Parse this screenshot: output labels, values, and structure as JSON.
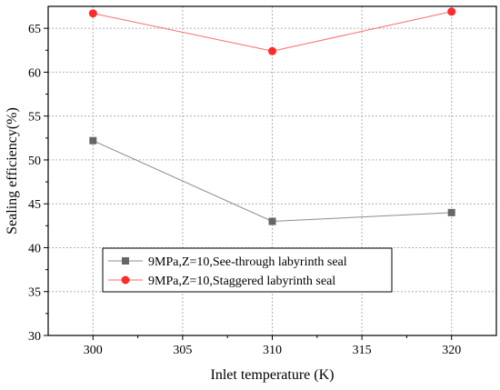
{
  "chart_data": {
    "type": "line",
    "xlabel": "Inlet temperature (K)",
    "ylabel": "Sealing efficiency(%)",
    "xlim": [
      297.5,
      322.5
    ],
    "ylim": [
      30,
      67.5
    ],
    "xticks": [
      300,
      305,
      310,
      315,
      320
    ],
    "yticks": [
      30,
      35,
      40,
      45,
      50,
      55,
      60,
      65
    ],
    "grid": true,
    "legend_position": "lower-left",
    "series": [
      {
        "name": "9MPa,Z=10,See-through labyrinth seal",
        "x": [
          300,
          310,
          320
        ],
        "y": [
          52.2,
          43.0,
          44.0
        ],
        "marker": "square",
        "marker_color": "#666666",
        "line_color": "#8c8c8c"
      },
      {
        "name": "9MPa,Z=10,Staggered labyrinth seal",
        "x": [
          300,
          310,
          320
        ],
        "y": [
          66.7,
          62.4,
          66.9
        ],
        "marker": "circle",
        "marker_color": "#ff2a2a",
        "line_color": "#ff6a6a"
      }
    ]
  }
}
